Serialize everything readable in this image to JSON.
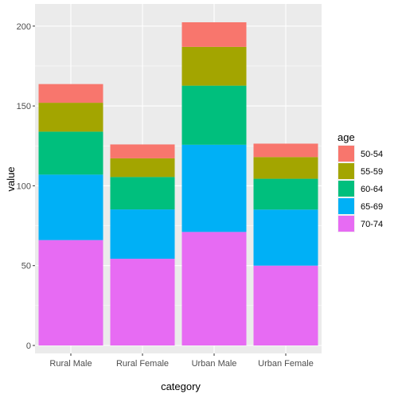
{
  "chart_data": {
    "type": "bar",
    "stacked": true,
    "xlabel": "category",
    "ylabel": "value",
    "ylim": [
      0,
      210
    ],
    "yticks": [
      0,
      50,
      100,
      150,
      200
    ],
    "grid": true,
    "categories": [
      "Rural Male",
      "Rural Female",
      "Urban Male",
      "Urban Female"
    ],
    "legend": {
      "title": "age",
      "placement": "right"
    },
    "series": [
      {
        "name": "50-54",
        "color": "#F8766D",
        "values": [
          11.7,
          8.7,
          15.4,
          8.4
        ]
      },
      {
        "name": "55-59",
        "color": "#A3A500",
        "values": [
          18.1,
          11.7,
          24.3,
          13.6
        ]
      },
      {
        "name": "60-64",
        "color": "#00BF7D",
        "values": [
          26.9,
          20.3,
          37.0,
          19.3
        ]
      },
      {
        "name": "65-69",
        "color": "#00B0F6",
        "values": [
          41.0,
          30.9,
          54.6,
          35.1
        ]
      },
      {
        "name": "70-74",
        "color": "#E76BF3",
        "values": [
          66.0,
          54.3,
          71.1,
          50.0
        ]
      }
    ]
  }
}
